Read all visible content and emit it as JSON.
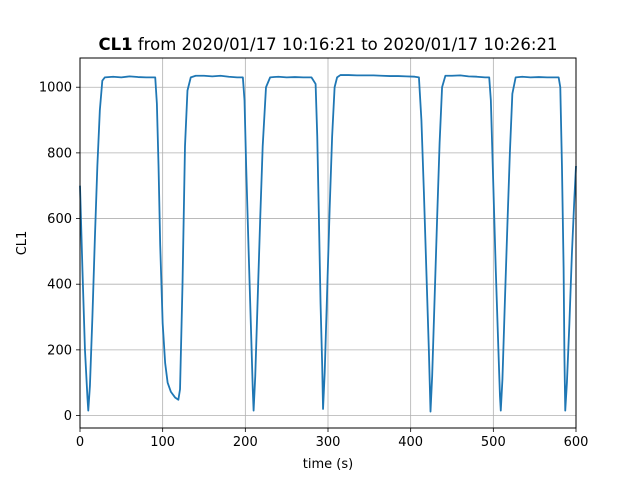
{
  "chart_data": {
    "type": "line",
    "title_bold": "CL1",
    "title_rest": " from 2020/01/17 10:16:21 to 2020/01/17 10:26:21",
    "xlabel": "time (s)",
    "ylabel": "CL1",
    "xlim": [
      0,
      600
    ],
    "ylim": [
      -38,
      1089
    ],
    "xticks": [
      0,
      100,
      200,
      300,
      400,
      500,
      600
    ],
    "yticks": [
      0,
      200,
      400,
      600,
      800,
      1000
    ],
    "grid": true,
    "line_color": "#1f77b4",
    "series": [
      {
        "x": [
          0,
          3,
          6,
          9,
          10,
          12,
          15,
          18,
          21,
          24,
          27,
          30,
          40,
          50,
          60,
          70,
          80,
          91,
          93,
          95,
          97,
          100,
          103,
          106,
          110,
          115,
          119,
          121,
          124,
          127,
          130,
          134,
          140,
          150,
          160,
          170,
          180,
          190,
          197,
          199,
          201,
          204,
          207,
          209,
          210,
          212,
          215,
          218,
          221,
          225,
          230,
          235,
          240,
          250,
          260,
          270,
          280,
          285,
          287,
          289,
          291,
          293,
          294,
          296,
          299,
          302,
          305,
          308,
          311,
          315,
          325,
          335,
          345,
          355,
          365,
          375,
          385,
          395,
          405,
          410,
          413,
          416,
          419,
          422,
          424,
          426,
          429,
          432,
          435,
          438,
          442,
          450,
          460,
          470,
          480,
          490,
          495,
          497,
          500,
          503,
          506,
          508,
          509,
          511,
          514,
          517,
          520,
          523,
          527,
          535,
          545,
          555,
          565,
          575,
          579,
          581,
          583,
          585,
          586,
          587,
          589,
          592,
          595,
          598,
          600
        ],
        "y": [
          700,
          440,
          200,
          55,
          15,
          90,
          300,
          540,
          760,
          930,
          1020,
          1030,
          1032,
          1030,
          1033,
          1031,
          1030,
          1030,
          950,
          760,
          520,
          280,
          160,
          100,
          72,
          55,
          48,
          80,
          400,
          820,
          990,
          1030,
          1035,
          1035,
          1033,
          1035,
          1032,
          1030,
          1030,
          960,
          760,
          500,
          250,
          80,
          15,
          120,
          360,
          600,
          820,
          1000,
          1030,
          1031,
          1032,
          1030,
          1031,
          1030,
          1030,
          1010,
          850,
          600,
          340,
          150,
          20,
          130,
          380,
          630,
          850,
          1000,
          1030,
          1037,
          1037,
          1036,
          1036,
          1036,
          1035,
          1034,
          1034,
          1033,
          1032,
          1030,
          900,
          680,
          440,
          200,
          12,
          120,
          360,
          600,
          830,
          1000,
          1035,
          1035,
          1036,
          1033,
          1032,
          1030,
          1030,
          960,
          700,
          440,
          210,
          60,
          15,
          110,
          350,
          580,
          800,
          980,
          1030,
          1032,
          1030,
          1031,
          1030,
          1030,
          1030,
          1000,
          760,
          450,
          180,
          15,
          100,
          280,
          490,
          660,
          760
        ]
      }
    ]
  }
}
